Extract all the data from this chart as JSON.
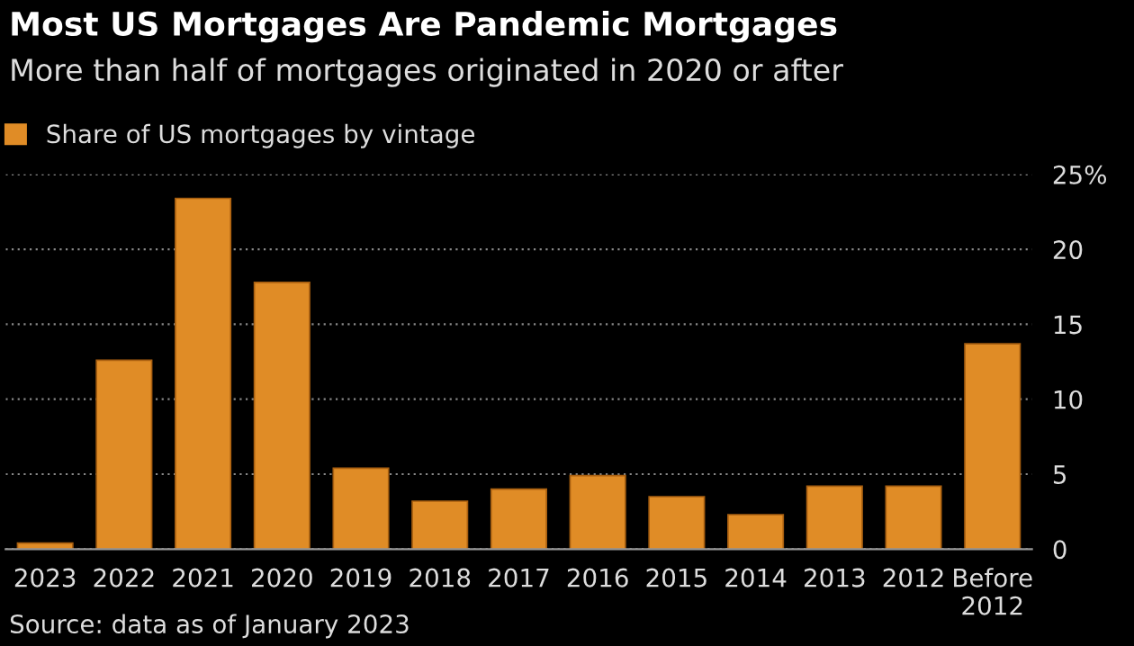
{
  "chart_data": {
    "type": "bar",
    "title": "Most US Mortgages Are Pandemic Mortgages",
    "subtitle": "More than half of mortgages originated in 2020 or after",
    "categories": [
      "2023",
      "2022",
      "2021",
      "2020",
      "2019",
      "2018",
      "2017",
      "2016",
      "2015",
      "2014",
      "2013",
      "2012",
      "Before\n2012"
    ],
    "series": [
      {
        "name": "Share of US mortgages by vintage",
        "color": "#e08c26",
        "values": [
          0.4,
          12.6,
          23.4,
          17.8,
          5.4,
          3.2,
          4.0,
          4.9,
          3.5,
          2.3,
          4.2,
          4.2,
          13.7
        ]
      }
    ],
    "ylim": [
      0,
      25
    ],
    "yticks": [
      0,
      5,
      10,
      15,
      20,
      {
        "value": 25,
        "label": "25%"
      }
    ],
    "grid": "y",
    "legend": "top left",
    "annotations": [
      "Source: data as of January 2023"
    ]
  }
}
